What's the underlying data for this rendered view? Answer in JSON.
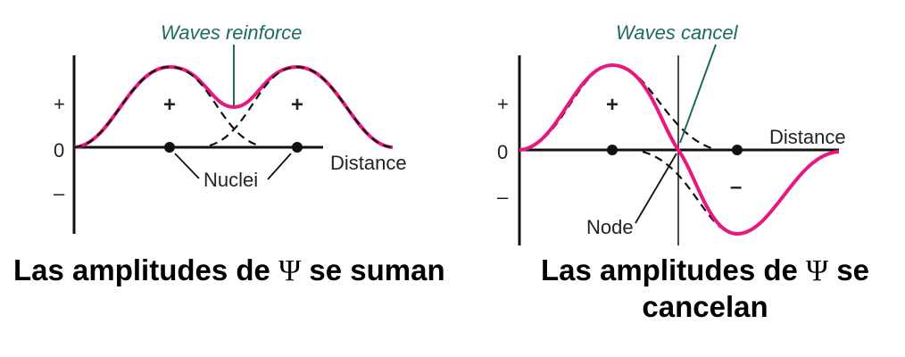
{
  "panels": [
    {
      "title": "Waves reinforce",
      "y_labels": [
        "+",
        "0",
        "–"
      ],
      "x_label": "Distance",
      "signs": [
        "+",
        "+"
      ],
      "annotation": "Nuclei",
      "caption_before": "Las amplitudes de",
      "caption_symbol": "Ψ",
      "caption_after": "se suman"
    },
    {
      "title": "Waves cancel",
      "y_labels": [
        "+",
        "0",
        "–"
      ],
      "x_label": "Distance",
      "signs": [
        "+",
        "–"
      ],
      "annotation": "Node",
      "caption_before": "Las amplitudes de",
      "caption_symbol": "Ψ",
      "caption_after": "se",
      "caption_line2": "cancelan"
    }
  ],
  "colors": {
    "sum_curve": "#e8197e",
    "component_curve": "#111111",
    "label_teal": "#1d6b5e",
    "axis": "#111111"
  }
}
